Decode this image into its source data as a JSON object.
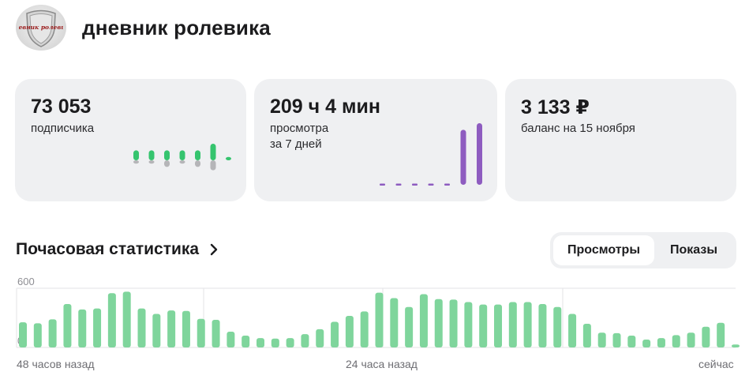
{
  "channel": {
    "title": "дневник ролевика",
    "avatar_icon": "shield-logo-icon",
    "avatar_text": "Дневник ролевика"
  },
  "cards": {
    "subscribers": {
      "value": "73 053",
      "label": "подписчика",
      "sparkline": {
        "type": "bar",
        "color_up": "#35c46e",
        "color_down": "#b5b5b8",
        "gains": [
          3,
          3,
          3,
          3,
          3,
          5,
          1
        ],
        "losses": [
          1,
          1,
          2,
          1,
          2,
          3,
          0
        ]
      }
    },
    "views": {
      "value_hours": "209",
      "unit_hours": "ч",
      "value_minutes": "4",
      "unit_minutes": "мин",
      "label_line1": "просмотра",
      "label_line2": "за 7 дней",
      "sparkline": {
        "type": "bar",
        "color": "#8e5cc0",
        "values": [
          0,
          0,
          0,
          0,
          0,
          100,
          112
        ]
      }
    },
    "balance": {
      "value": "3 133 ₽",
      "label": "баланс на 15 ноября"
    }
  },
  "hourly": {
    "title": "Почасовая статистика",
    "chevron_icon": "chevron-right-icon",
    "tabs": [
      {
        "label": "Просмотры",
        "active": true
      },
      {
        "label": "Показы",
        "active": false
      }
    ]
  },
  "chart_data": {
    "type": "bar",
    "title": "Почасовая статистика",
    "ylim": [
      0,
      600
    ],
    "y_ticks": [
      "600",
      "0"
    ],
    "x_labels": [
      "48 часов назад",
      "24 часа назад",
      "сейчас"
    ],
    "bar_color": "#7fd59c",
    "grid": true,
    "values": [
      255,
      245,
      285,
      440,
      385,
      395,
      550,
      565,
      395,
      340,
      375,
      370,
      290,
      280,
      160,
      120,
      95,
      90,
      95,
      135,
      185,
      260,
      320,
      365,
      555,
      500,
      410,
      540,
      490,
      485,
      460,
      435,
      435,
      460,
      460,
      440,
      410,
      340,
      240,
      150,
      145,
      120,
      80,
      95,
      125,
      150,
      210,
      250,
      30
    ]
  },
  "colors": {
    "card_bg": "#eff0f2",
    "accent_green": "#35c46e",
    "accent_purple": "#8e5cc0"
  }
}
